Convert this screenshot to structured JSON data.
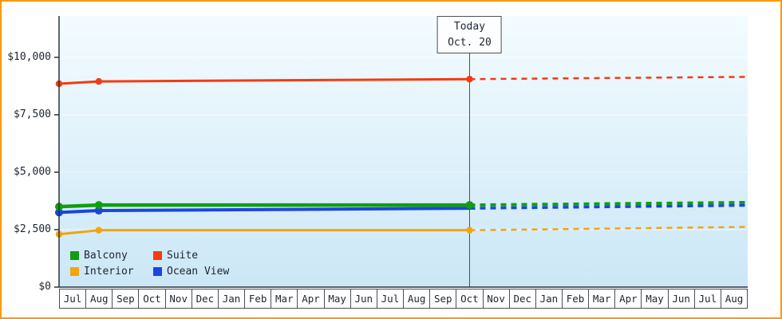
{
  "frame": {
    "border_color": "#ff9800",
    "background_color": "#ffffff"
  },
  "chart_data": {
    "type": "line",
    "ylim": [
      0,
      11800
    ],
    "grid": true,
    "legend_position": "bottom-left-inside",
    "plot_background": {
      "top": "#f4fcff",
      "bottom": "#cbe7f6"
    },
    "yticks": [
      {
        "value": 0,
        "label": "$0"
      },
      {
        "value": 2500,
        "label": "$2,500"
      },
      {
        "value": 5000,
        "label": "$5,000"
      },
      {
        "value": 7500,
        "label": "$7,500"
      },
      {
        "value": 10000,
        "label": "$10,000"
      }
    ],
    "months": [
      "Jul",
      "Aug",
      "Sep",
      "Oct",
      "Nov",
      "Dec",
      "Jan",
      "Feb",
      "Mar",
      "Apr",
      "May",
      "Jun",
      "Jul",
      "Aug",
      "Sep",
      "Oct",
      "Nov",
      "Dec",
      "Jan",
      "Feb",
      "Mar",
      "Apr",
      "May",
      "Jun",
      "Jul",
      "Aug"
    ],
    "today": {
      "line1": "Today",
      "line2": "Oct. 20",
      "month_index": 15
    },
    "series": [
      {
        "name": "Suite",
        "color": "#f53a10",
        "line_width": 3,
        "solid": [
          [
            0,
            8850
          ],
          [
            1.5,
            8950
          ],
          [
            15.5,
            9050
          ]
        ],
        "dashed": [
          [
            15.5,
            9050
          ],
          [
            26,
            9150
          ]
        ],
        "markers": [
          [
            0,
            8850
          ],
          [
            1.5,
            8950
          ],
          [
            15.5,
            9050
          ]
        ]
      },
      {
        "name": "Interior",
        "color": "#f3a40e",
        "line_width": 3,
        "solid": [
          [
            0,
            2300
          ],
          [
            1.5,
            2475
          ],
          [
            15.5,
            2475
          ]
        ],
        "dashed": [
          [
            15.5,
            2475
          ],
          [
            26,
            2620
          ]
        ],
        "markers": [
          [
            0,
            2300
          ],
          [
            1.5,
            2475
          ],
          [
            15.5,
            2475
          ]
        ]
      },
      {
        "name": "Ocean View",
        "color": "#1b45e0",
        "line_width": 4,
        "solid": [
          [
            0,
            3250
          ],
          [
            1.5,
            3330
          ],
          [
            15.5,
            3430
          ]
        ],
        "dashed": [
          [
            15.5,
            3430
          ],
          [
            26,
            3560
          ]
        ],
        "markers": [
          [
            0,
            3250
          ],
          [
            1.5,
            3330
          ]
        ]
      },
      {
        "name": "Balcony",
        "color": "#109e10",
        "line_width": 4.5,
        "solid": [
          [
            0,
            3500
          ],
          [
            1.5,
            3570
          ],
          [
            15.5,
            3570
          ]
        ],
        "dashed": [
          [
            15.5,
            3570
          ],
          [
            26,
            3680
          ]
        ],
        "markers": [
          [
            0,
            3500
          ],
          [
            1.5,
            3570
          ],
          [
            15.5,
            3570
          ]
        ]
      }
    ],
    "legend": [
      {
        "label": "Balcony",
        "color": "#109e10"
      },
      {
        "label": "Suite",
        "color": "#f53a10"
      },
      {
        "label": "Interior",
        "color": "#f3a40e"
      },
      {
        "label": "Ocean View",
        "color": "#1b45e0"
      }
    ]
  }
}
